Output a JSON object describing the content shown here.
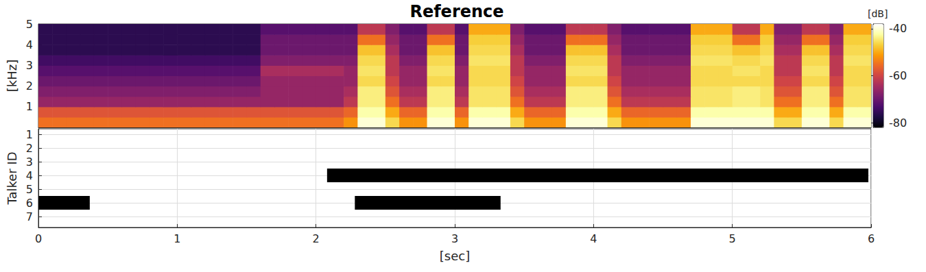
{
  "chart_data": [
    {
      "type": "heatmap",
      "title": "Reference",
      "y_label": "[kHz]",
      "x": [
        0,
        0.1,
        0.2,
        0.3,
        0.4,
        0.5,
        0.6,
        0.7,
        0.8,
        0.9,
        1.0,
        1.1,
        1.2,
        1.3,
        1.4,
        1.5,
        1.6,
        1.7,
        1.8,
        1.9,
        2.0,
        2.1,
        2.2,
        2.3,
        2.4,
        2.5,
        2.6,
        2.7,
        2.8,
        2.9,
        3.0,
        3.1,
        3.2,
        3.3,
        3.4,
        3.5,
        3.6,
        3.7,
        3.8,
        3.9,
        4.0,
        4.1,
        4.2,
        4.3,
        4.4,
        4.5,
        4.6,
        4.7,
        4.8,
        4.9,
        5.0,
        5.1,
        5.2,
        5.3,
        5.4,
        5.5,
        5.6,
        5.7,
        5.8,
        5.9,
        6.0
      ],
      "y": [
        0,
        0.5,
        1,
        1.5,
        2,
        2.5,
        3,
        3.5,
        4,
        4.5,
        5
      ],
      "cells": [
        [
          -55,
          -55,
          -55,
          -55,
          -55,
          -55,
          -55,
          -55,
          -55,
          -55,
          -55,
          -55,
          -55,
          -55,
          -55,
          -55,
          -55,
          -55,
          -55,
          -55,
          -55,
          -55,
          -52,
          -40,
          -40,
          -46,
          -52,
          -52,
          -40,
          -40,
          -52,
          -40,
          -40,
          -40,
          -46,
          -52,
          -52,
          -52,
          -40,
          -40,
          -40,
          -46,
          -52,
          -52,
          -52,
          -52,
          -52,
          -40,
          -40,
          -40,
          -40,
          -40,
          -40,
          -46,
          -46,
          -40,
          -40,
          -46,
          -40,
          -40
        ],
        [
          -58,
          -58,
          -58,
          -58,
          -58,
          -58,
          -58,
          -58,
          -58,
          -58,
          -58,
          -58,
          -58,
          -58,
          -58,
          -58,
          -58,
          -58,
          -58,
          -58,
          -58,
          -58,
          -56,
          -42,
          -42,
          -50,
          -56,
          -56,
          -42,
          -42,
          -56,
          -42,
          -42,
          -42,
          -50,
          -56,
          -56,
          -56,
          -42,
          -42,
          -42,
          -50,
          -56,
          -56,
          -56,
          -56,
          -56,
          -42,
          -42,
          -42,
          -42,
          -42,
          -42,
          -50,
          -50,
          -42,
          -42,
          -50,
          -42,
          -42
        ],
        [
          -66,
          -66,
          -66,
          -66,
          -66,
          -66,
          -66,
          -66,
          -66,
          -66,
          -66,
          -66,
          -66,
          -66,
          -66,
          -66,
          -66,
          -66,
          -66,
          -66,
          -66,
          -66,
          -62,
          -44,
          -44,
          -55,
          -62,
          -62,
          -44,
          -44,
          -62,
          -45,
          -45,
          -45,
          -55,
          -62,
          -62,
          -62,
          -44,
          -44,
          -44,
          -55,
          -62,
          -62,
          -62,
          -62,
          -62,
          -45,
          -45,
          -45,
          -44,
          -44,
          -45,
          -55,
          -55,
          -44,
          -44,
          -55,
          -45,
          -45
        ],
        [
          -68,
          -68,
          -68,
          -68,
          -68,
          -68,
          -68,
          -68,
          -68,
          -68,
          -68,
          -68,
          -68,
          -68,
          -68,
          -68,
          -66,
          -66,
          -66,
          -66,
          -66,
          -66,
          -64,
          -44,
          -44,
          -58,
          -64,
          -64,
          -44,
          -44,
          -64,
          -45,
          -45,
          -45,
          -58,
          -64,
          -64,
          -64,
          -44,
          -44,
          -44,
          -58,
          -64,
          -64,
          -64,
          -64,
          -64,
          -45,
          -45,
          -45,
          -44,
          -44,
          -45,
          -58,
          -58,
          -44,
          -44,
          -58,
          -45,
          -45
        ],
        [
          -70,
          -70,
          -70,
          -70,
          -70,
          -70,
          -70,
          -70,
          -70,
          -70,
          -70,
          -70,
          -70,
          -70,
          -70,
          -70,
          -66,
          -66,
          -66,
          -66,
          -66,
          -66,
          -66,
          -46,
          -46,
          -60,
          -66,
          -66,
          -46,
          -46,
          -66,
          -46,
          -46,
          -46,
          -60,
          -66,
          -66,
          -66,
          -46,
          -46,
          -46,
          -60,
          -66,
          -66,
          -66,
          -66,
          -66,
          -46,
          -46,
          -46,
          -46,
          -46,
          -46,
          -60,
          -60,
          -46,
          -46,
          -60,
          -46,
          -46
        ],
        [
          -72,
          -72,
          -72,
          -72,
          -72,
          -72,
          -72,
          -72,
          -72,
          -72,
          -72,
          -72,
          -72,
          -72,
          -72,
          -72,
          -64,
          -64,
          -64,
          -64,
          -64,
          -64,
          -66,
          -45,
          -45,
          -62,
          -66,
          -66,
          -45,
          -45,
          -66,
          -46,
          -46,
          -46,
          -62,
          -66,
          -66,
          -66,
          -45,
          -45,
          -45,
          -62,
          -66,
          -66,
          -66,
          -66,
          -66,
          -46,
          -46,
          -46,
          -45,
          -45,
          -46,
          -62,
          -62,
          -45,
          -45,
          -62,
          -46,
          -46
        ],
        [
          -74,
          -74,
          -74,
          -74,
          -74,
          -74,
          -74,
          -74,
          -74,
          -74,
          -74,
          -74,
          -74,
          -74,
          -74,
          -74,
          -68,
          -68,
          -68,
          -68,
          -68,
          -68,
          -68,
          -46,
          -46,
          -62,
          -68,
          -68,
          -46,
          -46,
          -68,
          -45,
          -45,
          -45,
          -62,
          -68,
          -68,
          -68,
          -46,
          -46,
          -46,
          -62,
          -68,
          -68,
          -68,
          -68,
          -68,
          -45,
          -45,
          -45,
          -46,
          -46,
          -45,
          -62,
          -62,
          -46,
          -46,
          -62,
          -45,
          -45
        ],
        [
          -76,
          -76,
          -76,
          -76,
          -76,
          -76,
          -76,
          -76,
          -76,
          -76,
          -76,
          -76,
          -76,
          -76,
          -76,
          -76,
          -70,
          -70,
          -70,
          -70,
          -70,
          -70,
          -70,
          -48,
          -48,
          -64,
          -70,
          -70,
          -48,
          -48,
          -70,
          -46,
          -46,
          -46,
          -64,
          -70,
          -70,
          -70,
          -48,
          -48,
          -48,
          -64,
          -70,
          -70,
          -70,
          -70,
          -70,
          -46,
          -46,
          -46,
          -48,
          -48,
          -46,
          -64,
          -64,
          -48,
          -48,
          -64,
          -46,
          -46
        ],
        [
          -76,
          -76,
          -76,
          -76,
          -76,
          -76,
          -76,
          -76,
          -76,
          -76,
          -76,
          -76,
          -76,
          -76,
          -76,
          -76,
          -70,
          -70,
          -70,
          -70,
          -70,
          -70,
          -70,
          -55,
          -55,
          -66,
          -70,
          -70,
          -55,
          -55,
          -70,
          -47,
          -47,
          -47,
          -66,
          -70,
          -70,
          -70,
          -55,
          -55,
          -55,
          -66,
          -70,
          -70,
          -70,
          -70,
          -70,
          -47,
          -47,
          -47,
          -55,
          -55,
          -47,
          -66,
          -66,
          -55,
          -55,
          -66,
          -47,
          -47
        ],
        [
          -76,
          -76,
          -76,
          -76,
          -76,
          -76,
          -76,
          -76,
          -76,
          -76,
          -76,
          -76,
          -76,
          -76,
          -76,
          -76,
          -72,
          -72,
          -72,
          -72,
          -72,
          -72,
          -72,
          -62,
          -62,
          -68,
          -72,
          -72,
          -62,
          -62,
          -72,
          -50,
          -50,
          -50,
          -68,
          -72,
          -72,
          -72,
          -62,
          -62,
          -62,
          -68,
          -72,
          -72,
          -72,
          -72,
          -72,
          -50,
          -50,
          -50,
          -62,
          -62,
          -50,
          -68,
          -68,
          -62,
          -62,
          -68,
          -50,
          -50
        ]
      ],
      "xlim": [
        0,
        6
      ],
      "ylim": [
        0,
        5
      ],
      "yticks": [
        1,
        2,
        3,
        4,
        5
      ],
      "tick_labels": "y",
      "colorbar": {
        "label": "[dB]",
        "range": [
          -82,
          -38
        ],
        "ticks": [
          -80,
          -60,
          -40
        ]
      }
    },
    {
      "type": "gantt",
      "x_label": "[sec]",
      "y_label": "Talker ID",
      "segments": [
        {
          "talker": 4,
          "start": 2.08,
          "end": 5.98
        },
        {
          "talker": 6,
          "start": 0,
          "end": 0.37
        },
        {
          "talker": 6,
          "start": 2.28,
          "end": 3.33
        }
      ],
      "color": "#000000",
      "xlim": [
        0,
        6
      ],
      "xticks": [
        0,
        1,
        2,
        3,
        4,
        5,
        6
      ],
      "ylim": [
        0.6,
        7.8
      ],
      "yticks": [
        1,
        2,
        3,
        4,
        5,
        6,
        7
      ],
      "grid": true
    }
  ]
}
